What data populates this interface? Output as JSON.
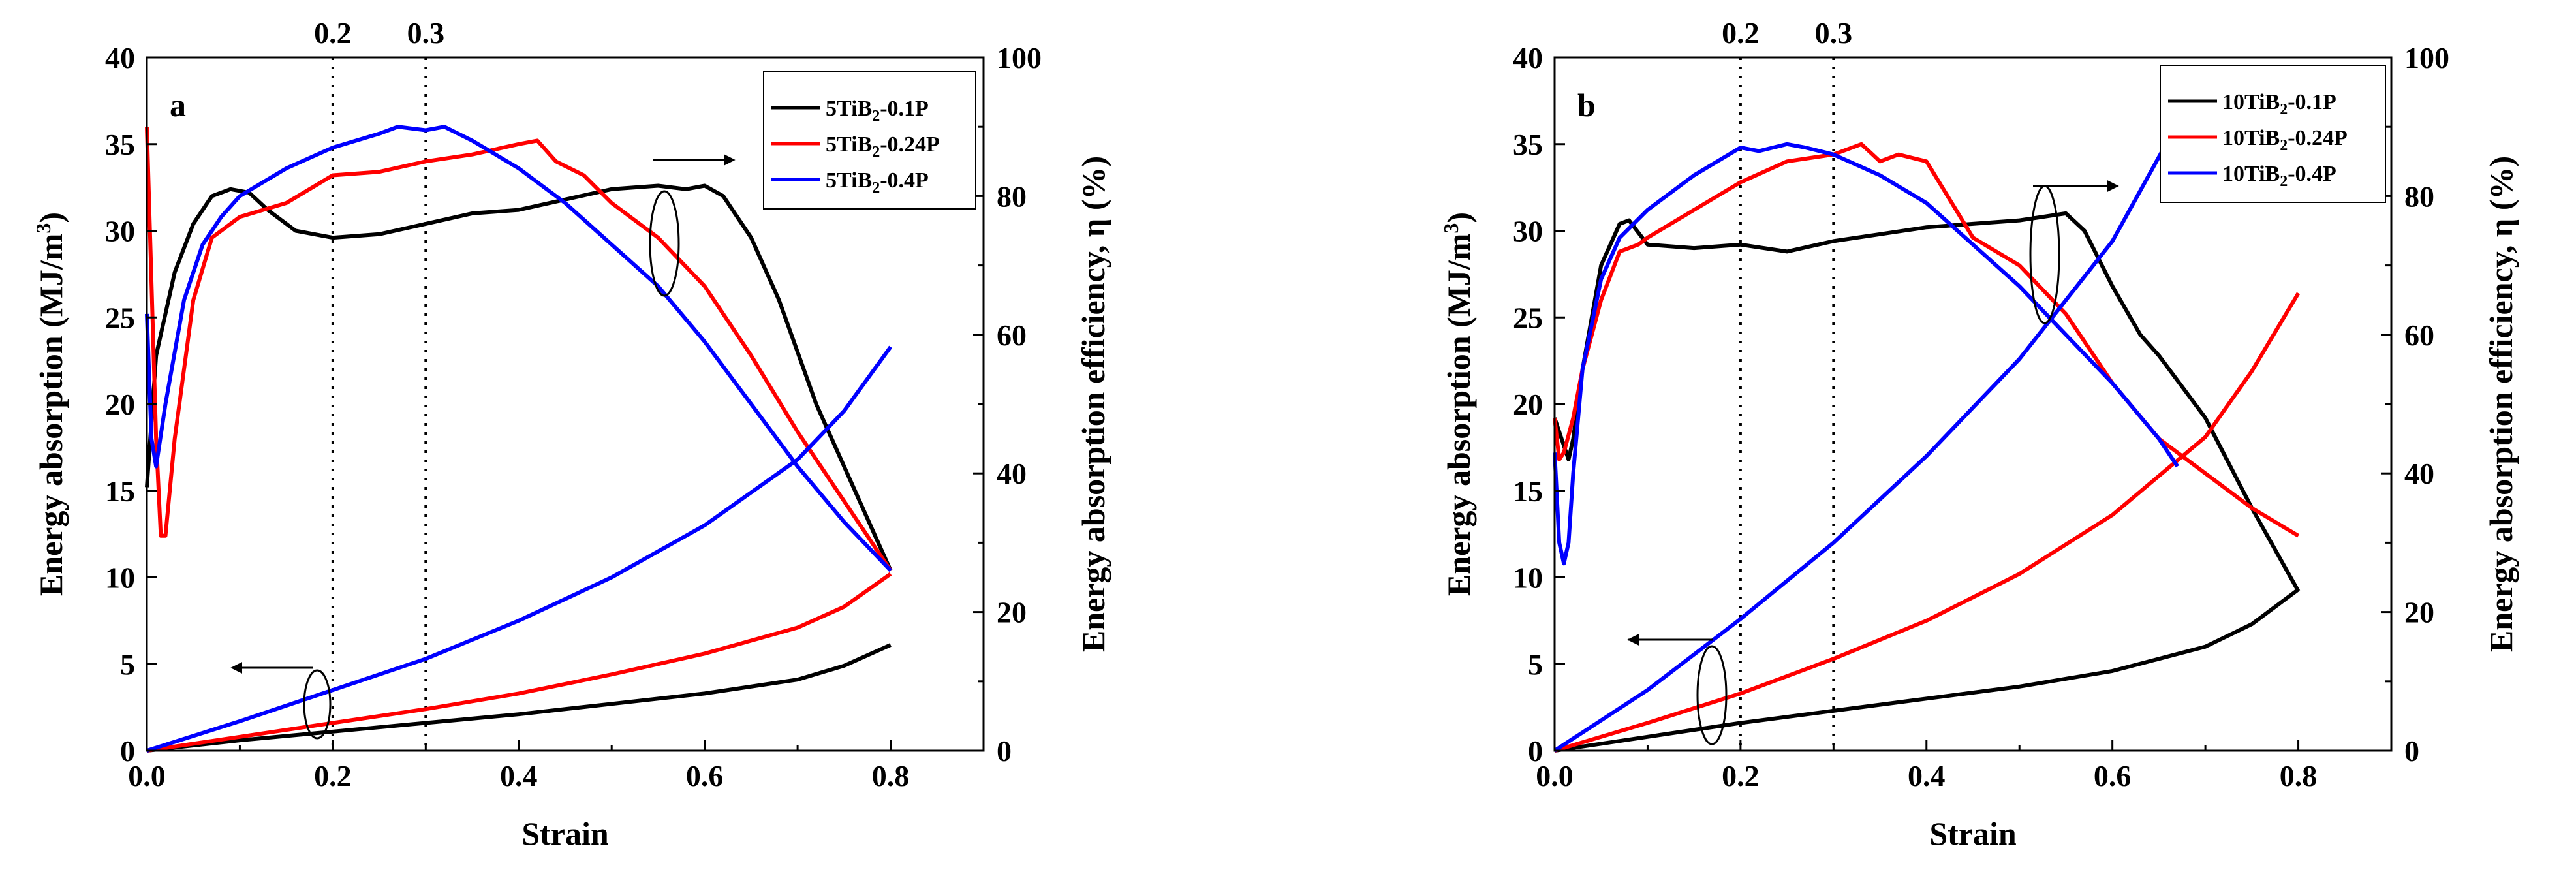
{
  "chart_data": [
    {
      "type": "line",
      "panel_label": "a",
      "xlabel": "Strain",
      "ylabel": "Energy absorption (MJ/m³)",
      "ylabel_base": "Energy absorption (MJ/m",
      "ylabel_sup": "3",
      "ylabel_end": ")",
      "y2label": "Energy absorption efficiency, η (%)",
      "xlim": [
        0,
        0.9
      ],
      "ylim": [
        0,
        40
      ],
      "y2lim": [
        0,
        100
      ],
      "x_ticks": [
        "0.0",
        "0.2",
        "0.4",
        "0.6",
        "0.8"
      ],
      "y_ticks": [
        "0",
        "5",
        "10",
        "15",
        "20",
        "25",
        "30",
        "35",
        "40"
      ],
      "y2_ticks": [
        "0",
        "20",
        "40",
        "60",
        "80",
        "100"
      ],
      "ref_lines": [
        {
          "x": 0.2,
          "label": "0.2"
        },
        {
          "x": 0.3,
          "label": "0.3"
        }
      ],
      "series": [
        {
          "name": "5TiB2-0.1P",
          "legend_base": "5TiB",
          "legend_sub": "2",
          "legend_end": "-0.1P",
          "color": "#000000",
          "energy": {
            "x": [
              0,
              0.1,
              0.2,
              0.3,
              0.4,
              0.5,
              0.6,
              0.7,
              0.75,
              0.8
            ],
            "y": [
              0,
              0.6,
              1.1,
              1.6,
              2.1,
              2.7,
              3.3,
              4.1,
              4.9,
              6.1
            ]
          },
          "efficiency": {
            "x": [
              0.0,
              0.01,
              0.03,
              0.05,
              0.07,
              0.09,
              0.11,
              0.13,
              0.16,
              0.2,
              0.25,
              0.3,
              0.35,
              0.4,
              0.45,
              0.5,
              0.55,
              0.58,
              0.6,
              0.62,
              0.65,
              0.68,
              0.72,
              0.76,
              0.8
            ],
            "y": [
              38,
              57,
              69,
              76,
              80,
              81,
              80.5,
              78,
              75,
              74,
              74.5,
              76,
              77.5,
              78,
              79.5,
              81,
              81.5,
              81,
              81.5,
              80,
              74,
              65,
              50,
              38,
              26
            ]
          }
        },
        {
          "name": "5TiB2-0.24P",
          "legend_base": "5TiB",
          "legend_sub": "2",
          "legend_end": "-0.24P",
          "color": "#ff0000",
          "energy": {
            "x": [
              0,
              0.1,
              0.2,
              0.3,
              0.4,
              0.5,
              0.6,
              0.7,
              0.75,
              0.8
            ],
            "y": [
              0,
              0.8,
              1.6,
              2.4,
              3.3,
              4.4,
              5.6,
              7.1,
              8.3,
              10.2
            ]
          },
          "efficiency": {
            "x": [
              0.0,
              0.01,
              0.015,
              0.02,
              0.03,
              0.05,
              0.07,
              0.1,
              0.15,
              0.2,
              0.25,
              0.3,
              0.35,
              0.4,
              0.42,
              0.44,
              0.47,
              0.5,
              0.55,
              0.6,
              0.65,
              0.7,
              0.75,
              0.8
            ],
            "y": [
              90,
              45,
              31,
              31,
              45,
              65,
              74,
              77,
              79,
              83,
              83.5,
              85,
              86,
              87.5,
              88,
              85,
              83,
              79,
              74,
              67,
              57,
              46,
              36,
              26
            ]
          }
        },
        {
          "name": "5TiB2-0.4P",
          "legend_base": "5TiB",
          "legend_sub": "2",
          "legend_end": "-0.4P",
          "color": "#0000ff",
          "energy": {
            "x": [
              0,
              0.1,
              0.2,
              0.3,
              0.4,
              0.5,
              0.6,
              0.7,
              0.75,
              0.8
            ],
            "y": [
              0,
              1.7,
              3.5,
              5.3,
              7.5,
              10.0,
              13.0,
              16.8,
              19.6,
              23.3
            ]
          },
          "efficiency": {
            "x": [
              0.0,
              0.005,
              0.01,
              0.02,
              0.04,
              0.06,
              0.08,
              0.1,
              0.15,
              0.2,
              0.25,
              0.27,
              0.3,
              0.32,
              0.35,
              0.4,
              0.45,
              0.5,
              0.55,
              0.6,
              0.65,
              0.7,
              0.75,
              0.8
            ],
            "y": [
              63,
              45,
              41,
              50,
              65,
              73,
              77,
              80,
              84,
              87,
              89,
              90,
              89.5,
              90,
              88,
              84,
              79,
              73,
              67,
              59,
              50,
              41,
              33,
              26
            ]
          }
        }
      ],
      "legend_position": "top-right"
    },
    {
      "type": "line",
      "panel_label": "b",
      "xlabel": "Strain",
      "ylabel": "Energy absorption (MJ/m³)",
      "ylabel_base": "Energy absorption (MJ/m",
      "ylabel_sup": "3",
      "ylabel_end": ")",
      "y2label": "Energy absorption efficiency, η (%)",
      "xlim": [
        0,
        0.9
      ],
      "ylim": [
        0,
        40
      ],
      "y2lim": [
        0,
        100
      ],
      "x_ticks": [
        "0.0",
        "0.2",
        "0.4",
        "0.6",
        "0.8"
      ],
      "y_ticks": [
        "0",
        "5",
        "10",
        "15",
        "20",
        "25",
        "30",
        "35",
        "40"
      ],
      "y2_ticks": [
        "0",
        "20",
        "40",
        "60",
        "80",
        "100"
      ],
      "ref_lines": [
        {
          "x": 0.2,
          "label": "0.2"
        },
        {
          "x": 0.3,
          "label": "0.3"
        }
      ],
      "series": [
        {
          "name": "10TiB2-0.1P",
          "legend_base": "10TiB",
          "legend_sub": "2",
          "legend_end": "-0.1P",
          "color": "#000000",
          "energy": {
            "x": [
              0,
              0.1,
              0.2,
              0.3,
              0.4,
              0.5,
              0.6,
              0.7,
              0.75,
              0.8
            ],
            "y": [
              0,
              0.8,
              1.6,
              2.3,
              3.0,
              3.7,
              4.6,
              6.0,
              7.3,
              9.3
            ]
          },
          "efficiency": {
            "x": [
              0.0,
              0.01,
              0.015,
              0.02,
              0.03,
              0.05,
              0.07,
              0.08,
              0.1,
              0.15,
              0.2,
              0.25,
              0.3,
              0.35,
              0.4,
              0.45,
              0.5,
              0.55,
              0.57,
              0.6,
              0.63,
              0.65,
              0.7,
              0.75,
              0.8
            ],
            "y": [
              48,
              44,
              42,
              45,
              55,
              70,
              76,
              76.5,
              73,
              72.5,
              73,
              72,
              73.5,
              74.5,
              75.5,
              76,
              76.5,
              77.5,
              75,
              67,
              60,
              57,
              48,
              35,
              23
            ]
          }
        },
        {
          "name": "10TiB2-0.24P",
          "legend_base": "10TiB",
          "legend_sub": "2",
          "legend_end": "-0.24P",
          "color": "#ff0000",
          "energy": {
            "x": [
              0,
              0.1,
              0.2,
              0.3,
              0.4,
              0.5,
              0.6,
              0.7,
              0.75,
              0.8
            ],
            "y": [
              0,
              1.6,
              3.3,
              5.3,
              7.5,
              10.2,
              13.6,
              18.1,
              21.9,
              26.4
            ]
          },
          "efficiency": {
            "x": [
              0.0,
              0.005,
              0.01,
              0.02,
              0.03,
              0.05,
              0.07,
              0.09,
              0.1,
              0.15,
              0.2,
              0.25,
              0.3,
              0.33,
              0.35,
              0.37,
              0.4,
              0.45,
              0.5,
              0.55,
              0.6,
              0.65,
              0.7,
              0.75,
              0.8
            ],
            "y": [
              48,
              42,
              43,
              48,
              55,
              65,
              72,
              73,
              74,
              78,
              82,
              85,
              86,
              87.5,
              85,
              86,
              85,
              74,
              70,
              63,
              53,
              45,
              40,
              35,
              31
            ]
          }
        },
        {
          "name": "10TiB2-0.4P",
          "legend_base": "10TiB",
          "legend_sub": "2",
          "legend_end": "-0.4P",
          "color": "#0000ff",
          "energy": {
            "x": [
              0,
              0.1,
              0.2,
              0.3,
              0.4,
              0.5,
              0.6,
              0.67
            ],
            "y": [
              0,
              3.5,
              7.6,
              12.0,
              17.0,
              22.6,
              29.4,
              36.2
            ]
          },
          "efficiency": {
            "x": [
              0.0,
              0.005,
              0.01,
              0.015,
              0.02,
              0.03,
              0.05,
              0.07,
              0.1,
              0.15,
              0.2,
              0.22,
              0.25,
              0.27,
              0.3,
              0.35,
              0.4,
              0.45,
              0.5,
              0.55,
              0.6,
              0.65,
              0.67
            ],
            "y": [
              43,
              30,
              27,
              30,
              40,
              55,
              68,
              74,
              78,
              83,
              87,
              86.5,
              87.5,
              87,
              86,
              83,
              79,
              73,
              67,
              60,
              53,
              45,
              41
            ]
          }
        }
      ],
      "legend_position": "top-right"
    }
  ]
}
